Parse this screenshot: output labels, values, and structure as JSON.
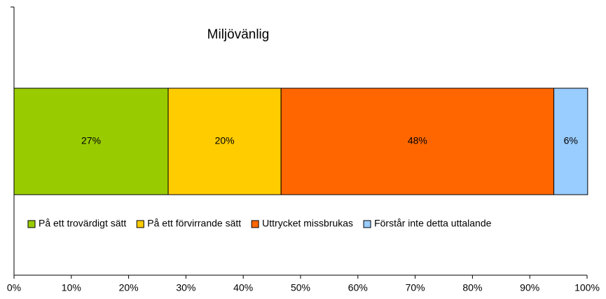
{
  "chart_data": {
    "type": "stacked-bar-horizontal",
    "title": "Miljövänlig",
    "categories": [
      null
    ],
    "series": [
      {
        "name": "På ett trovärdigt sätt",
        "color": "#99cc00",
        "values": [
          26.9
        ],
        "value_labels": [
          "27%"
        ]
      },
      {
        "name": "På ett förvirrande sätt",
        "color": "#ffcc00",
        "values": [
          19.7
        ],
        "value_labels": [
          "20%"
        ]
      },
      {
        "name": "Uttrycket missbrukas",
        "color": "#ff6600",
        "values": [
          47.6
        ],
        "value_labels": [
          "48%"
        ]
      },
      {
        "name": "Förstår inte detta uttalande",
        "color": "#99ccff",
        "values": [
          5.9
        ],
        "value_labels": [
          "6%"
        ]
      }
    ],
    "xlim": [
      0,
      100
    ],
    "xticks": [
      {
        "value": 0,
        "label": "0%"
      },
      {
        "value": 10,
        "label": "10%"
      },
      {
        "value": 20,
        "label": "20%"
      },
      {
        "value": 30,
        "label": "30%"
      },
      {
        "value": 40,
        "label": "40%"
      },
      {
        "value": 50,
        "label": "50%"
      },
      {
        "value": 60,
        "label": "60%"
      },
      {
        "value": 70,
        "label": "70%"
      },
      {
        "value": 80,
        "label": "80%"
      },
      {
        "value": 90,
        "label": "90%"
      },
      {
        "value": 100,
        "label": "100%"
      }
    ],
    "legend": "bottom",
    "grid": false
  }
}
